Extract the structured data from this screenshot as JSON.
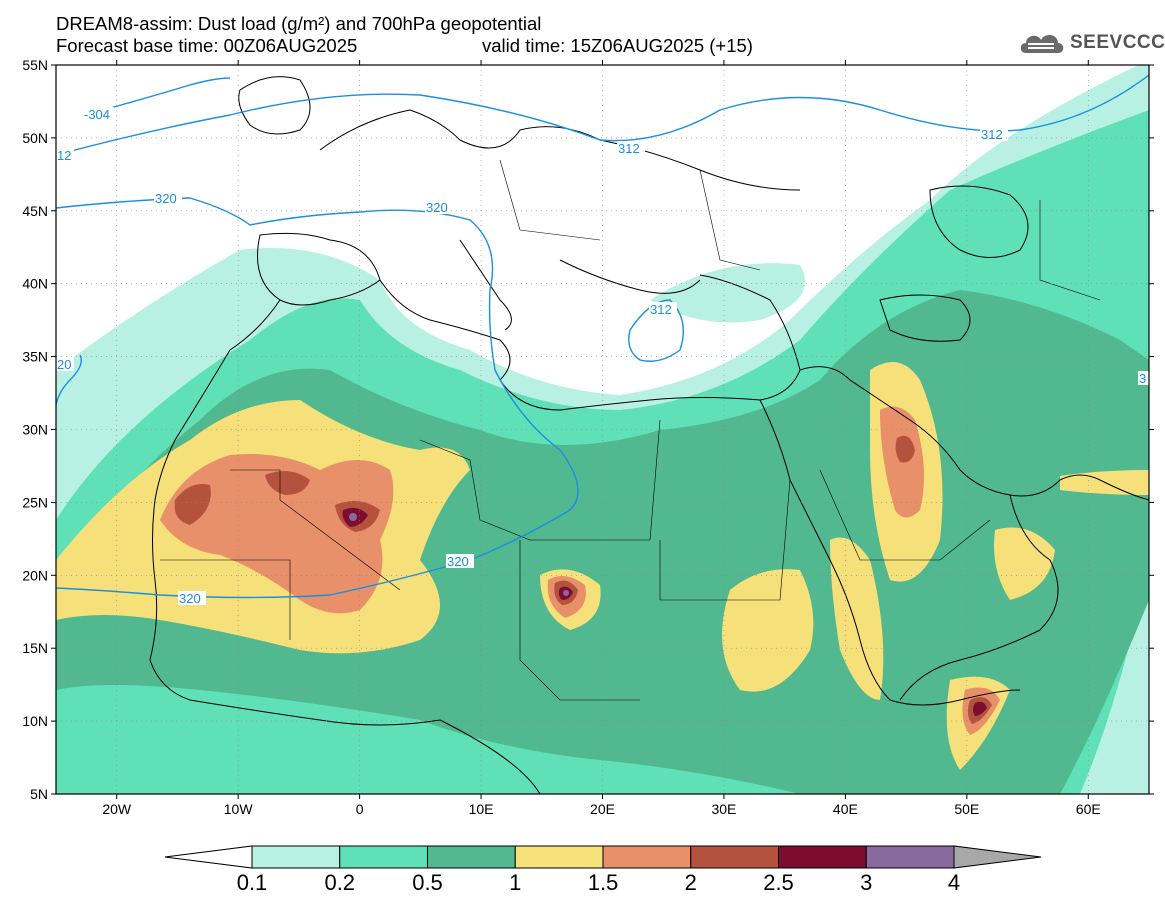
{
  "title": {
    "line1": "DREAM8-assim: Dust load (g/m²) and 700hPa geopotential",
    "line2": "Forecast base time: 00Z06AUG2025",
    "line2b": "valid time: 15Z06AUG2025 (+15)"
  },
  "logo": {
    "text": "SEEVCCC",
    "icon": "cloud-icon"
  },
  "map": {
    "lon_range": [
      -25,
      65
    ],
    "lat_range": [
      5,
      55
    ],
    "lat_labels": [
      "55N",
      "50N",
      "45N",
      "40N",
      "35N",
      "30N",
      "25N",
      "20N",
      "15N",
      "10N",
      "5N"
    ],
    "lon_labels": [
      "20W",
      "10W",
      "0",
      "10E",
      "20E",
      "30E",
      "40E",
      "50E",
      "60E"
    ],
    "contour_labels": [
      "-304",
      "12",
      "320",
      "312",
      "320",
      "312",
      "20",
      "320",
      "320",
      "312",
      "3"
    ]
  },
  "colorbar": {
    "labels": [
      "0.1",
      "0.2",
      "0.5",
      "1",
      "1.5",
      "2",
      "2.5",
      "3",
      "4"
    ],
    "colors": [
      "#ffffff",
      "#b9f0e4",
      "#5fe0b6",
      "#52b88f",
      "#f5e07a",
      "#e8906a",
      "#b5523e",
      "#7d0d2e",
      "#8a6a9e",
      "#a8a8a8"
    ]
  }
}
